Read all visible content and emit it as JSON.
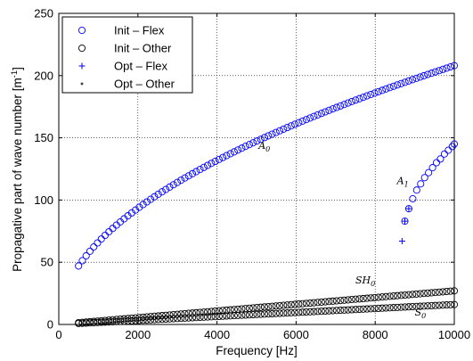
{
  "chart_data": {
    "type": "scatter",
    "title": "",
    "xlabel": "Frequency [Hz]",
    "ylabel_main": "Propagative part of wave number [m",
    "ylabel_sup": "-1",
    "ylabel_close": "]",
    "xlim": [
      0,
      10000
    ],
    "ylim": [
      0,
      250
    ],
    "xticks": [
      0,
      2000,
      4000,
      6000,
      8000,
      10000
    ],
    "yticks": [
      0,
      50,
      100,
      150,
      200,
      250
    ],
    "grid": true,
    "legend_position": "top-left",
    "series": [
      {
        "name": "Init – Flex",
        "marker": "circle",
        "color": "#0000ff",
        "mode": "A0"
      },
      {
        "name": "Init – Other",
        "marker": "circle",
        "color": "#000000",
        "mode": "SH0/S0"
      },
      {
        "name": "Opt – Flex",
        "marker": "plus",
        "color": "#0000ff",
        "mode": "A1"
      },
      {
        "name": "Opt – Other",
        "marker": "dot",
        "color": "#000000",
        "mode": "none"
      }
    ],
    "curves": {
      "A0": {
        "x_start": 500,
        "x_end": 10000,
        "n_points": 100,
        "y_start": 47,
        "y_end": 208,
        "law": "sqrt",
        "marker": "circle",
        "color": "#0000ff"
      },
      "A1": {
        "x": [
          8750,
          8850,
          8950,
          9050,
          9150,
          9250,
          9350,
          9450,
          9550,
          9650,
          9750,
          9850,
          9950,
          10000
        ],
        "y": [
          83,
          93,
          101,
          108,
          113,
          118,
          122,
          126,
          130,
          133,
          137,
          140,
          143,
          145
        ],
        "marker": "circle",
        "color": "#0000ff"
      },
      "A1_opt": {
        "x": [
          8680,
          8750,
          8850
        ],
        "y": [
          67,
          83,
          93
        ],
        "marker": "plus",
        "color": "#0000ff"
      },
      "SH0": {
        "x_start": 500,
        "x_end": 10000,
        "n_points": 100,
        "y_start": 1.4,
        "y_end": 27,
        "law": "linear",
        "marker": "circle",
        "color": "#000000"
      },
      "S0": {
        "x_start": 500,
        "x_end": 10000,
        "n_points": 100,
        "y_start": 0.8,
        "y_end": 16,
        "law": "linear",
        "marker": "circle",
        "color": "#000000"
      }
    },
    "annotations": [
      {
        "base": "A",
        "sub": "0",
        "x": 5050,
        "y": 141
      },
      {
        "base": "A",
        "sub": "1",
        "x": 8550,
        "y": 113
      },
      {
        "base": "SH",
        "sub": "0",
        "x": 7500,
        "y": 33
      },
      {
        "base": "S",
        "sub": "0",
        "x": 9000,
        "y": 7
      }
    ]
  }
}
